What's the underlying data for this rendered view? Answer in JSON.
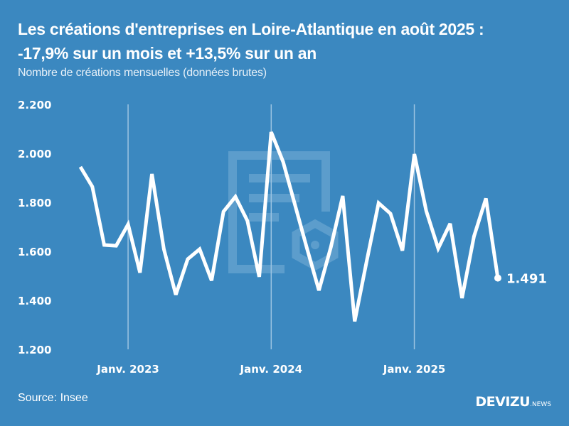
{
  "header": {
    "title_line1": "Les créations d'entreprises en Loire-Atlantique en août 2025 :",
    "title_line2": "-17,9% sur un mois et +13,5% sur un an",
    "subtitle": "Nombre de créations mensuelles (données brutes)"
  },
  "footer": {
    "source": "Source: Insee",
    "brand": "DEVIZU",
    "brand_suffix": ".NEWS"
  },
  "colors": {
    "background": "#3b88c0",
    "line": "#ffffff",
    "gridline": "#9cc4e2",
    "watermark": "#6aa6d2"
  },
  "chart_data": {
    "type": "line",
    "title": "Les créations d'entreprises en Loire-Atlantique en août 2025 : -17,9% sur un mois et +13,5% sur un an",
    "subtitle": "Nombre de créations mensuelles (données brutes)",
    "xlabel": "",
    "ylabel": "",
    "ylim": [
      1200,
      2200
    ],
    "yticks": [
      1200,
      1400,
      1600,
      1800,
      2000,
      2200
    ],
    "ytick_labels": [
      "1.200",
      "1.400",
      "1.600",
      "1.800",
      "2.000",
      "2.200"
    ],
    "xticks": [
      {
        "index": 4,
        "label": "Janv. 2023"
      },
      {
        "index": 16,
        "label": "Janv. 2024"
      },
      {
        "index": 28,
        "label": "Janv. 2025"
      }
    ],
    "grid": "vertical lines at January of each year",
    "legend": "none",
    "x": [
      "2022-09",
      "2022-10",
      "2022-11",
      "2022-12",
      "2023-01",
      "2023-02",
      "2023-03",
      "2023-04",
      "2023-05",
      "2023-06",
      "2023-07",
      "2023-08",
      "2023-09",
      "2023-10",
      "2023-11",
      "2023-12",
      "2024-01",
      "2024-02",
      "2024-03",
      "2024-04",
      "2024-05",
      "2024-06",
      "2024-07",
      "2024-08",
      "2024-09",
      "2024-10",
      "2024-11",
      "2024-12",
      "2025-01",
      "2025-02",
      "2025-03",
      "2025-04",
      "2025-05",
      "2025-06",
      "2025-07",
      "2025-08"
    ],
    "series": [
      {
        "name": "Créations d'entreprises",
        "values": [
          1945,
          1864,
          1626,
          1623,
          1710,
          1513,
          1916,
          1609,
          1423,
          1568,
          1609,
          1481,
          1762,
          1823,
          1725,
          1496,
          2087,
          1965,
          1788,
          1612,
          1441,
          1617,
          1826,
          1314,
          1559,
          1797,
          1754,
          1603,
          1997,
          1765,
          1612,
          1713,
          1409,
          1661,
          1816,
          1491
        ]
      }
    ],
    "annotations": [
      {
        "index": 35,
        "text": "1.491"
      }
    ]
  }
}
